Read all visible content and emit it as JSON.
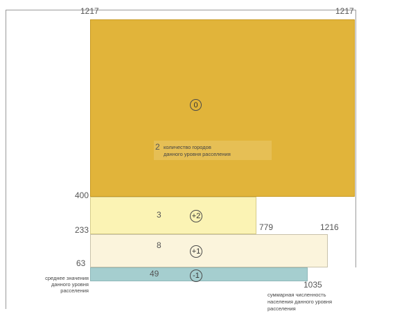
{
  "chart_data": {
    "type": "diagram",
    "labels": {
      "top_left": "1217",
      "top_right": "1217",
      "y_400": "400",
      "y_233": "233",
      "y_63": "63",
      "x_779": "779",
      "x_1216": "1216",
      "x_1035": "1035"
    },
    "levels": [
      {
        "count": "2",
        "circle": "0",
        "color": "#e1b43a",
        "caption": [
          "количество городов",
          "данного уровня расселения"
        ]
      },
      {
        "count": "3",
        "circle": "+2",
        "color": "#fbf3b4"
      },
      {
        "count": "8",
        "circle": "+1",
        "color": "#fbf4dc"
      },
      {
        "count": "49",
        "circle": "-1",
        "color": "#a5cecf"
      }
    ],
    "left_note": [
      "среднее значения",
      "данного уровня",
      "расселения"
    ],
    "bottom_note": [
      "суммарная численность",
      "населения данного уровня",
      "расселения"
    ]
  }
}
